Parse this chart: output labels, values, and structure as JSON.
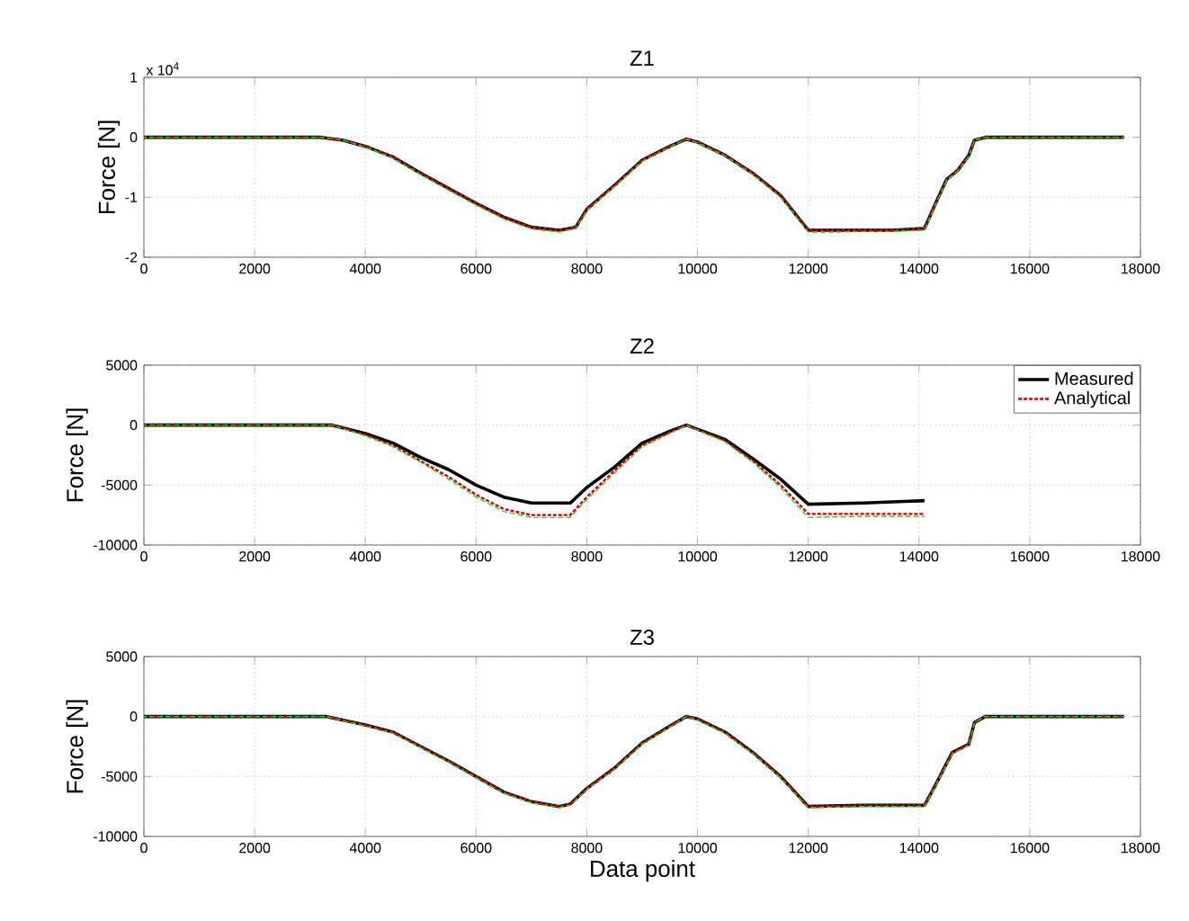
{
  "chart_data": [
    {
      "type": "line",
      "title": "Z1",
      "ylabel": "Force [N]",
      "annotations": [
        "x 10$^{4}$"
      ],
      "xlim": [
        0,
        18000
      ],
      "ylim": [
        -2,
        1
      ],
      "xticks": [
        0,
        2000,
        4000,
        6000,
        8000,
        10000,
        12000,
        14000,
        16000,
        18000
      ],
      "yticks": [
        -2,
        -1,
        0,
        1
      ],
      "grid": true,
      "series": [
        {
          "color": "#000000",
          "line_style": "solid",
          "x": [
            0,
            3200,
            3600,
            4000,
            4500,
            5000,
            5500,
            6000,
            6500,
            7000,
            7500,
            7800,
            8000,
            8500,
            9000,
            9500,
            9800,
            10000,
            10500,
            11000,
            11500,
            12000,
            12500,
            13000,
            13500,
            14100,
            14300,
            14500,
            14700,
            14900,
            15000,
            15200,
            17700
          ],
          "values": [
            0,
            0,
            -0.05,
            -0.15,
            -0.33,
            -0.6,
            -0.85,
            -1.1,
            -1.33,
            -1.5,
            -1.55,
            -1.5,
            -1.2,
            -0.8,
            -0.38,
            -0.15,
            -0.03,
            -0.08,
            -0.3,
            -0.6,
            -0.97,
            -1.55,
            -1.55,
            -1.55,
            -1.55,
            -1.52,
            -1.1,
            -0.7,
            -0.55,
            -0.3,
            -0.05,
            0,
            0
          ]
        },
        {
          "color": "#cc0000",
          "line_style": "dashed",
          "x": [
            0,
            3200,
            3600,
            4000,
            4500,
            5000,
            5500,
            6000,
            6500,
            7000,
            7500,
            7800,
            8000,
            8500,
            9000,
            9500,
            9800,
            10000,
            10500,
            11000,
            11500,
            12000,
            12500,
            13000,
            13500,
            14100,
            14300,
            14500,
            14700,
            14900,
            15000,
            15200,
            17700
          ],
          "values": [
            0,
            0,
            -0.05,
            -0.15,
            -0.33,
            -0.6,
            -0.85,
            -1.1,
            -1.33,
            -1.5,
            -1.55,
            -1.5,
            -1.2,
            -0.8,
            -0.38,
            -0.15,
            -0.03,
            -0.08,
            -0.3,
            -0.6,
            -0.97,
            -1.55,
            -1.55,
            -1.55,
            -1.55,
            -1.52,
            -1.1,
            -0.7,
            -0.55,
            -0.3,
            -0.05,
            0,
            0
          ]
        },
        {
          "color": "#33cc33",
          "line_style": "dashed",
          "x": [
            0,
            3200,
            3600,
            4000,
            4500,
            5000,
            5500,
            6000,
            6500,
            7000,
            7500,
            7800,
            8000,
            8500,
            9000,
            9500,
            9800,
            10000,
            10500,
            11000,
            11500,
            12000,
            12500,
            13000,
            13500,
            14100,
            14300,
            14500,
            14700,
            14900,
            15000,
            15200,
            17700
          ],
          "values": [
            0,
            0,
            -0.05,
            -0.16,
            -0.35,
            -0.62,
            -0.88,
            -1.13,
            -1.36,
            -1.53,
            -1.58,
            -1.52,
            -1.22,
            -0.82,
            -0.4,
            -0.16,
            -0.03,
            -0.09,
            -0.31,
            -0.62,
            -1.0,
            -1.58,
            -1.58,
            -1.57,
            -1.57,
            -1.55,
            -1.12,
            -0.72,
            -0.56,
            -0.32,
            -0.05,
            0,
            0
          ]
        }
      ]
    },
    {
      "type": "line",
      "title": "Z2",
      "ylabel": "Force [N]",
      "xlim": [
        0,
        18000
      ],
      "ylim": [
        -10000,
        5000
      ],
      "xticks": [
        0,
        2000,
        4000,
        6000,
        8000,
        10000,
        12000,
        14000,
        16000,
        18000
      ],
      "yticks": [
        -10000,
        -5000,
        0,
        5000
      ],
      "grid": true,
      "legend": "top right",
      "series": [
        {
          "name": "Measured",
          "color": "#000000",
          "line_style": "solid",
          "x": [
            0,
            3400,
            4000,
            4500,
            5000,
            5500,
            6000,
            6500,
            7000,
            7700,
            8000,
            8500,
            9000,
            9500,
            9800,
            10500,
            11000,
            11500,
            12000,
            13000,
            14100
          ],
          "values": [
            0,
            0,
            -700,
            -1500,
            -2700,
            -3700,
            -5000,
            -6000,
            -6500,
            -6500,
            -5200,
            -3500,
            -1500,
            -500,
            0,
            -1200,
            -2800,
            -4500,
            -6600,
            -6500,
            -6300
          ]
        },
        {
          "name": "Analytical",
          "color": "#cc0000",
          "line_style": "dashed",
          "x": [
            0,
            3400,
            4000,
            4500,
            5000,
            5500,
            6000,
            6500,
            7000,
            7700,
            8000,
            8500,
            9000,
            9500,
            9800,
            10500,
            11000,
            11500,
            12000,
            13000,
            14100
          ],
          "values": [
            0,
            0,
            -800,
            -1700,
            -3000,
            -4300,
            -5800,
            -7000,
            -7500,
            -7500,
            -6000,
            -3800,
            -1700,
            -600,
            0,
            -1300,
            -3000,
            -5000,
            -7400,
            -7400,
            -7400
          ]
        },
        {
          "color": "#33cc33",
          "line_style": "dashed",
          "x": [
            0,
            3400,
            4000,
            4500,
            5000,
            5500,
            6000,
            6500,
            7000,
            7700,
            8000,
            8500,
            9000,
            9500,
            9800,
            10500,
            11000,
            11500,
            12000,
            13000,
            14100
          ],
          "values": [
            0,
            0,
            -900,
            -1800,
            -3100,
            -4500,
            -6000,
            -7200,
            -7700,
            -7700,
            -6200,
            -4000,
            -1800,
            -700,
            0,
            -1400,
            -3100,
            -5200,
            -7700,
            -7600,
            -7600
          ]
        }
      ]
    },
    {
      "type": "line",
      "title": "Z3",
      "xlabel": "Data point",
      "ylabel": "Force [N]",
      "xlim": [
        0,
        18000
      ],
      "ylim": [
        -10000,
        5000
      ],
      "xticks": [
        0,
        2000,
        4000,
        6000,
        8000,
        10000,
        12000,
        14000,
        16000,
        18000
      ],
      "yticks": [
        -10000,
        -5000,
        0,
        5000
      ],
      "grid": true,
      "series": [
        {
          "color": "#000000",
          "line_style": "solid",
          "x": [
            0,
            3300,
            4000,
            4500,
            5000,
            5500,
            6000,
            6500,
            7000,
            7500,
            7700,
            8000,
            8500,
            9000,
            9500,
            9800,
            10000,
            10500,
            11000,
            11500,
            12000,
            13000,
            14100,
            14300,
            14600,
            14900,
            15000,
            15200,
            17700
          ],
          "values": [
            0,
            0,
            -700,
            -1300,
            -2500,
            -3700,
            -5000,
            -6300,
            -7100,
            -7500,
            -7300,
            -6000,
            -4300,
            -2200,
            -800,
            0,
            -200,
            -1300,
            -3000,
            -5000,
            -7500,
            -7400,
            -7400,
            -5700,
            -3000,
            -2300,
            -500,
            0,
            0
          ]
        },
        {
          "color": "#cc0000",
          "line_style": "dashed",
          "x": [
            0,
            3300,
            4000,
            4500,
            5000,
            5500,
            6000,
            6500,
            7000,
            7500,
            7700,
            8000,
            8500,
            9000,
            9500,
            9800,
            10000,
            10500,
            11000,
            11500,
            12000,
            13000,
            14100,
            14300,
            14600,
            14900,
            15000,
            15200,
            17700
          ],
          "values": [
            0,
            0,
            -700,
            -1300,
            -2500,
            -3700,
            -5000,
            -6300,
            -7100,
            -7500,
            -7300,
            -6000,
            -4300,
            -2200,
            -800,
            0,
            -200,
            -1300,
            -3000,
            -5000,
            -7500,
            -7400,
            -7400,
            -5700,
            -3000,
            -2300,
            -500,
            0,
            0
          ]
        },
        {
          "color": "#33cc33",
          "line_style": "dashed",
          "x": [
            0,
            3300,
            4000,
            4500,
            5000,
            5500,
            6000,
            6500,
            7000,
            7500,
            7700,
            8000,
            8500,
            9000,
            9500,
            9800,
            10000,
            10500,
            11000,
            11500,
            12000,
            13000,
            14100,
            14300,
            14600,
            14900,
            15000,
            15200,
            17700
          ],
          "values": [
            0,
            0,
            -800,
            -1400,
            -2600,
            -3800,
            -5100,
            -6400,
            -7200,
            -7600,
            -7400,
            -6100,
            -4400,
            -2300,
            -900,
            0,
            -300,
            -1400,
            -3100,
            -5100,
            -7600,
            -7500,
            -7500,
            -5800,
            -3100,
            -2400,
            -500,
            0,
            0
          ]
        }
      ]
    }
  ]
}
